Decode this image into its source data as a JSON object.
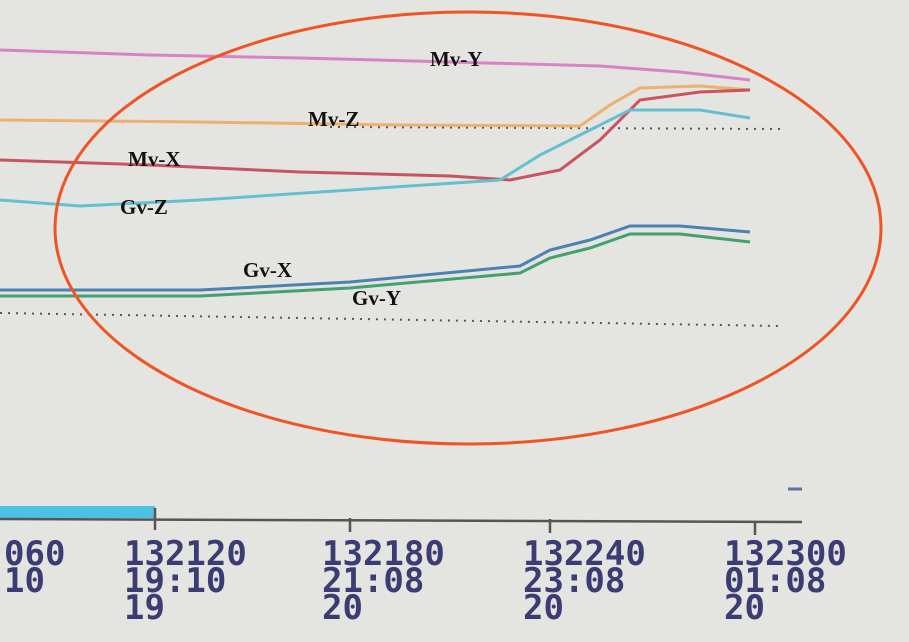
{
  "labels": [
    {
      "text": "Mv-Y"
    },
    {
      "text": "Mv-Z"
    },
    {
      "text": "Mv-X"
    },
    {
      "text": "Gv-Z"
    },
    {
      "text": "Gv-X"
    },
    {
      "text": "Gv-Y"
    }
  ],
  "axis": {
    "ticks": [
      {
        "lines": [
          "060",
          "10"
        ]
      },
      {
        "lines": [
          "132120",
          "19:10",
          "19"
        ]
      },
      {
        "lines": [
          "132180",
          "21:08",
          "20"
        ]
      },
      {
        "lines": [
          "132240",
          "23:08",
          "20"
        ]
      },
      {
        "lines": [
          "132300",
          "01:08",
          "20"
        ]
      }
    ]
  }
}
